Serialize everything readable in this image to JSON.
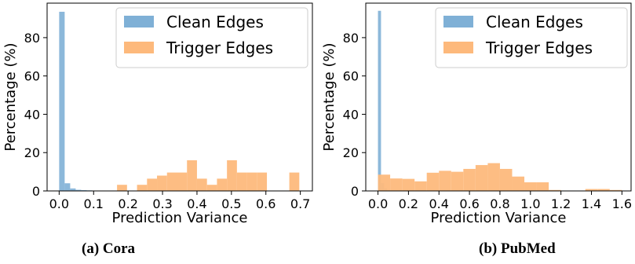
{
  "chart_data": [
    {
      "type": "histogram",
      "caption": "(a) Cora",
      "xlabel": "Prediction Variance",
      "ylabel": "Percentage (%)",
      "xlim": [
        -0.035,
        0.735
      ],
      "ylim": [
        0,
        98
      ],
      "xticks": [
        "0.0",
        "0.1",
        "0.2",
        "0.3",
        "0.4",
        "0.5",
        "0.6",
        "0.7"
      ],
      "xtick_values": [
        0,
        0.1,
        0.2,
        0.3,
        0.4,
        0.5,
        0.6,
        0.7
      ],
      "yticks": [
        "0",
        "20",
        "40",
        "60",
        "80"
      ],
      "ytick_values": [
        0,
        20,
        40,
        60,
        80
      ],
      "legend_position": "top-right",
      "series": [
        {
          "name": "Clean Edges",
          "color": "#7fb0d6",
          "bins": [
            {
              "x0": 0.0,
              "x1": 0.016,
              "value": 93.5
            },
            {
              "x0": 0.016,
              "x1": 0.032,
              "value": 4.0
            },
            {
              "x0": 0.032,
              "x1": 0.048,
              "value": 1.3
            },
            {
              "x0": 0.048,
              "x1": 0.064,
              "value": 0.6
            },
            {
              "x0": 0.064,
              "x1": 0.08,
              "value": 0.4
            },
            {
              "x0": 0.08,
              "x1": 0.096,
              "value": 0.3
            },
            {
              "x0": 0.096,
              "x1": 0.112,
              "value": 0.2
            },
            {
              "x0": 0.112,
              "x1": 0.128,
              "value": 0.1
            }
          ]
        },
        {
          "name": "Trigger Edges",
          "color": "#fdb97c",
          "bins": [
            {
              "x0": 0.168,
              "x1": 0.197,
              "value": 3.2
            },
            {
              "x0": 0.197,
              "x1": 0.226,
              "value": 0
            },
            {
              "x0": 0.226,
              "x1": 0.255,
              "value": 3.2
            },
            {
              "x0": 0.255,
              "x1": 0.284,
              "value": 6.4
            },
            {
              "x0": 0.284,
              "x1": 0.313,
              "value": 8.0
            },
            {
              "x0": 0.313,
              "x1": 0.342,
              "value": 9.6
            },
            {
              "x0": 0.342,
              "x1": 0.371,
              "value": 9.6
            },
            {
              "x0": 0.371,
              "x1": 0.4,
              "value": 16.0
            },
            {
              "x0": 0.4,
              "x1": 0.429,
              "value": 6.4
            },
            {
              "x0": 0.429,
              "x1": 0.458,
              "value": 3.2
            },
            {
              "x0": 0.458,
              "x1": 0.487,
              "value": 6.4
            },
            {
              "x0": 0.487,
              "x1": 0.516,
              "value": 16.0
            },
            {
              "x0": 0.516,
              "x1": 0.545,
              "value": 9.6
            },
            {
              "x0": 0.545,
              "x1": 0.574,
              "value": 9.6
            },
            {
              "x0": 0.574,
              "x1": 0.603,
              "value": 9.6
            },
            {
              "x0": 0.668,
              "x1": 0.697,
              "value": 9.6
            }
          ]
        }
      ]
    },
    {
      "type": "histogram",
      "caption": "(b) PubMed",
      "xlabel": "Prediction Variance",
      "ylabel": "Percentage (%)",
      "xlim": [
        -0.08,
        1.66
      ],
      "ylim": [
        0,
        98
      ],
      "xticks": [
        "0.0",
        "0.2",
        "0.4",
        "0.6",
        "0.8",
        "1.0",
        "1.2",
        "1.4",
        "1.6"
      ],
      "xtick_values": [
        0,
        0.2,
        0.4,
        0.6,
        0.8,
        1.0,
        1.2,
        1.4,
        1.6
      ],
      "yticks": [
        "0",
        "20",
        "40",
        "60",
        "80"
      ],
      "ytick_values": [
        0,
        20,
        40,
        60,
        80
      ],
      "legend_position": "top-right",
      "series": [
        {
          "name": "Clean Edges",
          "color": "#7fb0d6",
          "bins": [
            {
              "x0": 0.0,
              "x1": 0.02,
              "value": 94.0
            },
            {
              "x0": 0.02,
              "x1": 0.04,
              "value": 4.0
            },
            {
              "x0": 0.04,
              "x1": 0.06,
              "value": 1.3
            },
            {
              "x0": 0.06,
              "x1": 0.08,
              "value": 0.5
            }
          ]
        },
        {
          "name": "Trigger Edges",
          "color": "#fdb97c",
          "bins": [
            {
              "x0": 0.0,
              "x1": 0.08,
              "value": 8.5
            },
            {
              "x0": 0.08,
              "x1": 0.16,
              "value": 6.5
            },
            {
              "x0": 0.16,
              "x1": 0.24,
              "value": 6.3
            },
            {
              "x0": 0.24,
              "x1": 0.32,
              "value": 5.0
            },
            {
              "x0": 0.32,
              "x1": 0.4,
              "value": 9.5
            },
            {
              "x0": 0.4,
              "x1": 0.48,
              "value": 10.5
            },
            {
              "x0": 0.48,
              "x1": 0.56,
              "value": 10.0
            },
            {
              "x0": 0.56,
              "x1": 0.64,
              "value": 11.5
            },
            {
              "x0": 0.64,
              "x1": 0.72,
              "value": 13.5
            },
            {
              "x0": 0.72,
              "x1": 0.8,
              "value": 14.5
            },
            {
              "x0": 0.8,
              "x1": 0.88,
              "value": 11.5
            },
            {
              "x0": 0.88,
              "x1": 0.96,
              "value": 7.5
            },
            {
              "x0": 0.96,
              "x1": 1.04,
              "value": 4.5
            },
            {
              "x0": 1.04,
              "x1": 1.12,
              "value": 4.5
            },
            {
              "x0": 1.12,
              "x1": 1.2,
              "value": 0.5
            },
            {
              "x0": 1.36,
              "x1": 1.44,
              "value": 1.0
            },
            {
              "x0": 1.44,
              "x1": 1.52,
              "value": 1.0
            },
            {
              "x0": 1.52,
              "x1": 1.6,
              "value": 0.5
            }
          ]
        }
      ]
    }
  ]
}
